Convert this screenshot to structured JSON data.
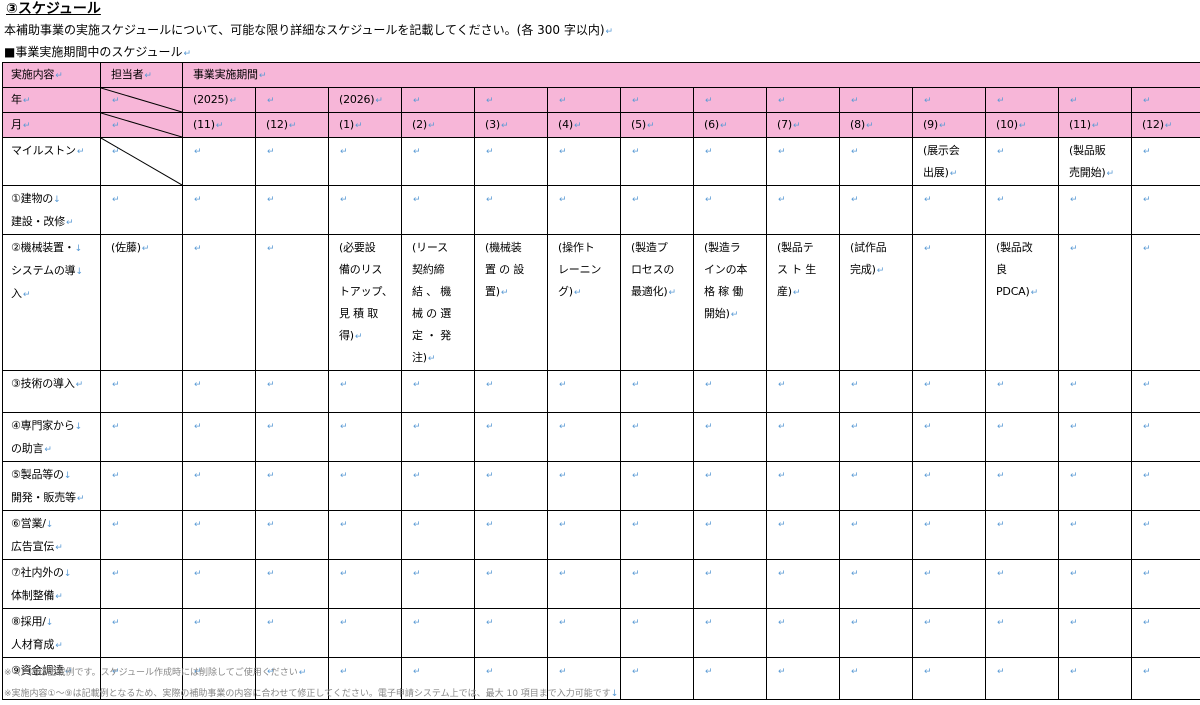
{
  "section_title": "③スケジュール",
  "intro": "本補助事業の実施スケジュールについて、可能な限り詳細なスケジュールを記載してください。(各 300 字以内)",
  "subheading": "■事業実施期間中のスケジュール",
  "mark": "↵",
  "header": {
    "content_col": "実施内容",
    "person_col": "担当者",
    "period_col": "事業実施期間",
    "year_label": "年",
    "month_label": "月",
    "years": [
      "(2025)",
      "",
      "(2026)",
      "",
      "",
      "",
      "",
      "",
      "",
      "",
      "",
      "",
      "",
      ""
    ],
    "months": [
      "(11)",
      "(12)",
      "(1)",
      "(2)",
      "(3)",
      "(4)",
      "(5)",
      "(6)",
      "(7)",
      "(8)",
      "(9)",
      "(10)",
      "(11)",
      "(12)"
    ]
  },
  "rows": [
    {
      "label": [
        "マイルストン"
      ],
      "person": "",
      "cells": [
        "",
        "",
        "",
        "",
        "",
        "",
        "",
        "",
        "",
        "",
        [
          "(展示会",
          "出展)"
        ],
        "",
        [
          "(製品販",
          "売開始)"
        ],
        ""
      ]
    },
    {
      "label": [
        "①建物の",
        "建設・改修"
      ],
      "person": "",
      "cells": [
        "",
        "",
        "",
        "",
        "",
        "",
        "",
        "",
        "",
        "",
        "",
        "",
        "",
        ""
      ]
    },
    {
      "label": [
        "②機械装置・",
        "システムの導",
        "入"
      ],
      "person": "(佐藤)",
      "cells": [
        "",
        "",
        [
          "(必要設",
          "備のリス",
          "トアップ、",
          "見 積 取",
          "得)"
        ],
        [
          "(リース",
          "契約締",
          "結 、 機",
          "械 の 選",
          "定 ・ 発",
          "注)"
        ],
        [
          "(機械装",
          "置 の 設",
          "置)"
        ],
        [
          "(操作ト",
          "レーニン",
          "グ)"
        ],
        [
          "(製造プ",
          "ロセスの",
          "最適化)"
        ],
        [
          "(製造ラ",
          "インの本",
          "格 稼 働",
          "開始)"
        ],
        [
          "(製品テ",
          "ス ト 生",
          "産)"
        ],
        [
          "(試作品",
          "完成)"
        ],
        "",
        [
          "(製品改",
          "良",
          "PDCA)"
        ],
        "",
        ""
      ]
    },
    {
      "label": [
        "③技術の導入"
      ],
      "person": "",
      "cells": [
        "",
        "",
        "",
        "",
        "",
        "",
        "",
        "",
        "",
        "",
        "",
        "",
        "",
        ""
      ]
    },
    {
      "label": [
        "④専門家から",
        "の助言"
      ],
      "person": "",
      "cells": [
        "",
        "",
        "",
        "",
        "",
        "",
        "",
        "",
        "",
        "",
        "",
        "",
        "",
        ""
      ]
    },
    {
      "label": [
        "⑤製品等の",
        "開発・販売等"
      ],
      "person": "",
      "cells": [
        "",
        "",
        "",
        "",
        "",
        "",
        "",
        "",
        "",
        "",
        "",
        "",
        "",
        ""
      ]
    },
    {
      "label": [
        "⑥営業/",
        "広告宣伝"
      ],
      "person": "",
      "cells": [
        "",
        "",
        "",
        "",
        "",
        "",
        "",
        "",
        "",
        "",
        "",
        "",
        "",
        ""
      ]
    },
    {
      "label": [
        "⑦社内外の",
        "体制整備"
      ],
      "person": "",
      "cells": [
        "",
        "",
        "",
        "",
        "",
        "",
        "",
        "",
        "",
        "",
        "",
        "",
        "",
        ""
      ]
    },
    {
      "label": [
        "⑧採用/",
        "人材育成"
      ],
      "person": "",
      "cells": [
        "",
        "",
        "",
        "",
        "",
        "",
        "",
        "",
        "",
        "",
        "",
        "",
        "",
        ""
      ]
    },
    {
      "label": [
        "⑨資金調達"
      ],
      "person": "",
      "cells": [
        "",
        "",
        "",
        "",
        "",
        "",
        "",
        "",
        "",
        "",
        "",
        "",
        "",
        ""
      ]
    }
  ],
  "notes": [
    "※（）内は記載例です。スケジュール作成時には削除してご使用ください",
    "※実施内容①～⑨は記載例となるため、実際の補助事業の内容に合わせて修正してください。電子申請システム上では、最大 10 項目まで入力可能です"
  ]
}
